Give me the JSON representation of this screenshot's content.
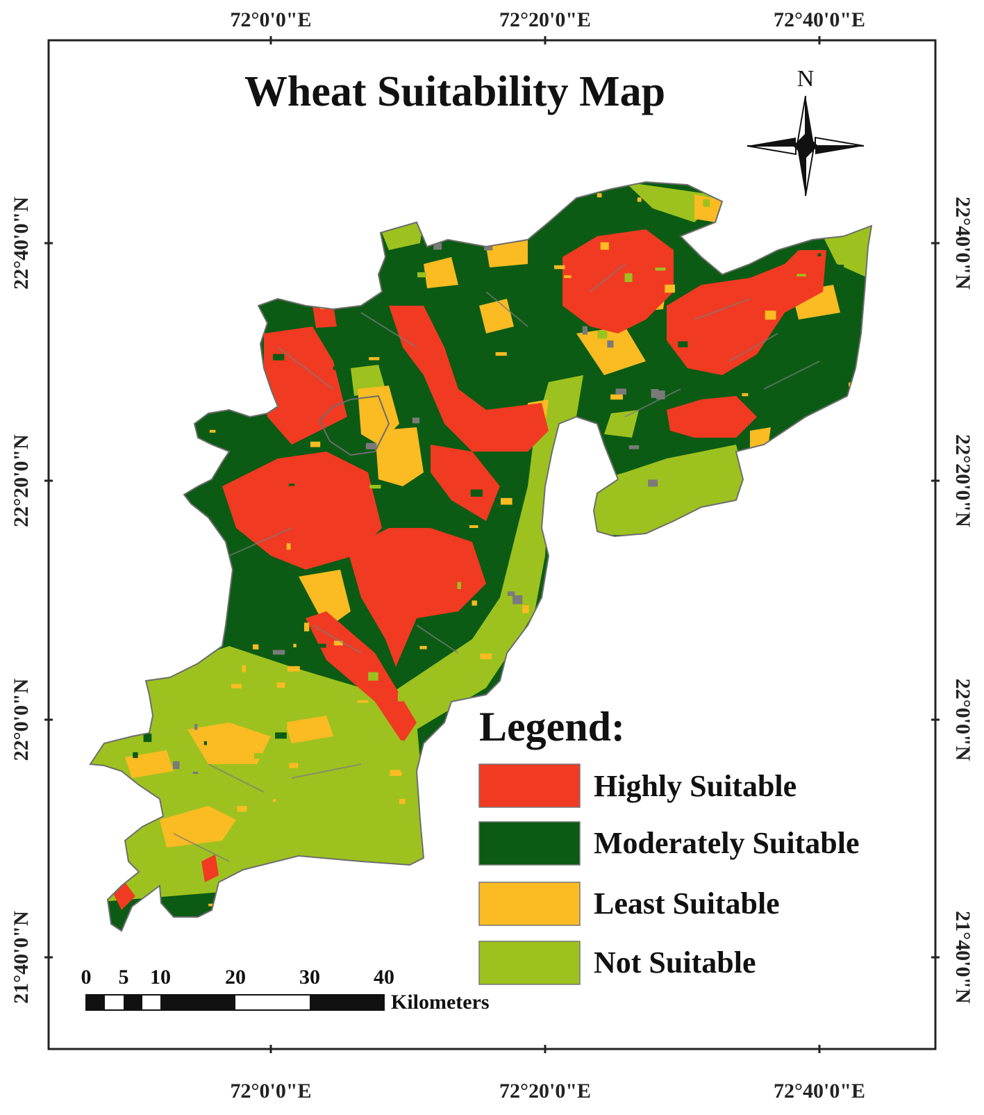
{
  "map": {
    "title": "Wheat Suitability Map",
    "north_label": "N",
    "top_longitudes": [
      "72°0'0\"E",
      "72°20'0\"E",
      "72°40'0\"E"
    ],
    "bottom_longitudes": [
      "72°0'0\"E",
      "72°20'0\"E",
      "72°40'0\"E"
    ],
    "left_latitudes": [
      "22°40'0\"N",
      "22°20'0\"N",
      "22°0'0\"N",
      "21°40'0\"N"
    ],
    "right_latitudes": [
      "22°40'0\"N",
      "22°20'0\"N",
      "22°0'0\"N",
      "21°40'0\"N"
    ]
  },
  "legend": {
    "title": "Legend:",
    "items": [
      {
        "label": "Highly Suitable",
        "color": "#f03a22"
      },
      {
        "label": "Moderately Suitable",
        "color": "#0b5b14"
      },
      {
        "label": "Least Suitable",
        "color": "#fbbb22"
      },
      {
        "label": "Not Suitable",
        "color": "#9dc21f"
      }
    ]
  },
  "scale_bar": {
    "ticks": [
      "0",
      "5",
      "10",
      "20",
      "30",
      "40"
    ],
    "unit": "Kilometers"
  }
}
